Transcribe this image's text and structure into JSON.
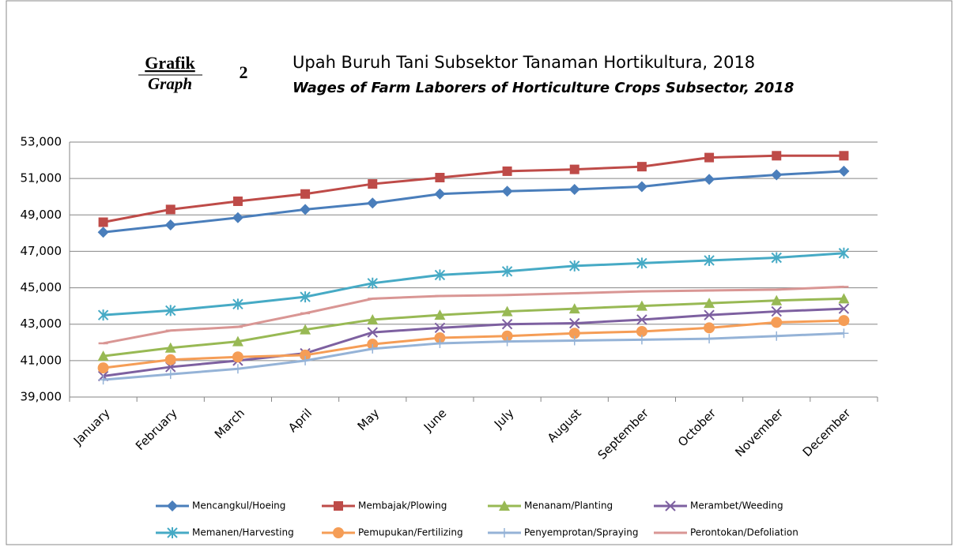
{
  "chart_data": {
    "type": "line",
    "label": "Grafik",
    "label_en": "Graph",
    "number": "2",
    "title": "Upah Buruh Tani Subsektor Tanaman Hortikultura, 2018",
    "subtitle": "Wages of Farm Laborers of Horticulture Crops Subsector, 2018",
    "categories": [
      "January",
      "February",
      "March",
      "April",
      "May",
      "June",
      "July",
      "August",
      "September",
      "October",
      "November",
      "December"
    ],
    "ylim": [
      39000,
      53000
    ],
    "yticks": [
      {
        "value": 39000,
        "label": "39,000"
      },
      {
        "value": 41000,
        "label": "41,000"
      },
      {
        "value": 43000,
        "label": "43,000"
      },
      {
        "value": 45000,
        "label": "45,000"
      },
      {
        "value": 47000,
        "label": "47,000"
      },
      {
        "value": 49000,
        "label": "49,000"
      },
      {
        "value": 51000,
        "label": "51,000"
      },
      {
        "value": 53000,
        "label": "53,000"
      }
    ],
    "grid": true,
    "legend": "bottom",
    "series": [
      {
        "name": "Mencangkul/Hoeing",
        "color": "#4a7ebb",
        "marker": "diamond",
        "values": [
          48050,
          48450,
          48850,
          49300,
          49650,
          50150,
          50300,
          50400,
          50550,
          50950,
          51200,
          51400
        ]
      },
      {
        "name": "Membajak/Plowing",
        "color": "#be4b48",
        "marker": "square",
        "values": [
          48600,
          49300,
          49750,
          50150,
          50700,
          51050,
          51400,
          51500,
          51650,
          52150,
          52250,
          52250
        ]
      },
      {
        "name": "Menanam/Planting",
        "color": "#98b954",
        "marker": "triangle",
        "values": [
          41250,
          41700,
          42050,
          42700,
          43250,
          43500,
          43700,
          43850,
          44000,
          44150,
          44300,
          44400
        ]
      },
      {
        "name": "Merambet/Weeding",
        "color": "#7d60a0",
        "marker": "x",
        "values": [
          40150,
          40650,
          41000,
          41400,
          42550,
          42800,
          43000,
          43050,
          43250,
          43500,
          43700,
          43850
        ]
      },
      {
        "name": "Memanen/Harvesting",
        "color": "#46aac5",
        "marker": "star",
        "values": [
          43500,
          43750,
          44100,
          44500,
          45250,
          45700,
          45900,
          46200,
          46350,
          46500,
          46650,
          46900
        ]
      },
      {
        "name": "Pemupukan/Fertilizing",
        "color": "#f59d56",
        "marker": "circle",
        "values": [
          40600,
          41050,
          41200,
          41300,
          41900,
          42250,
          42350,
          42500,
          42600,
          42800,
          43100,
          43200
        ]
      },
      {
        "name": "Penyemprotan/Spraying",
        "color": "#95b3d7",
        "marker": "plus",
        "values": [
          39950,
          40250,
          40550,
          41000,
          41650,
          41950,
          42050,
          42100,
          42150,
          42200,
          42350,
          42500
        ]
      },
      {
        "name": "Perontokan/Defoliation",
        "color": "#d99694",
        "marker": "dash",
        "values": [
          41950,
          42650,
          42850,
          43600,
          44400,
          44550,
          44600,
          44700,
          44800,
          44850,
          44900,
          45050
        ]
      }
    ]
  }
}
